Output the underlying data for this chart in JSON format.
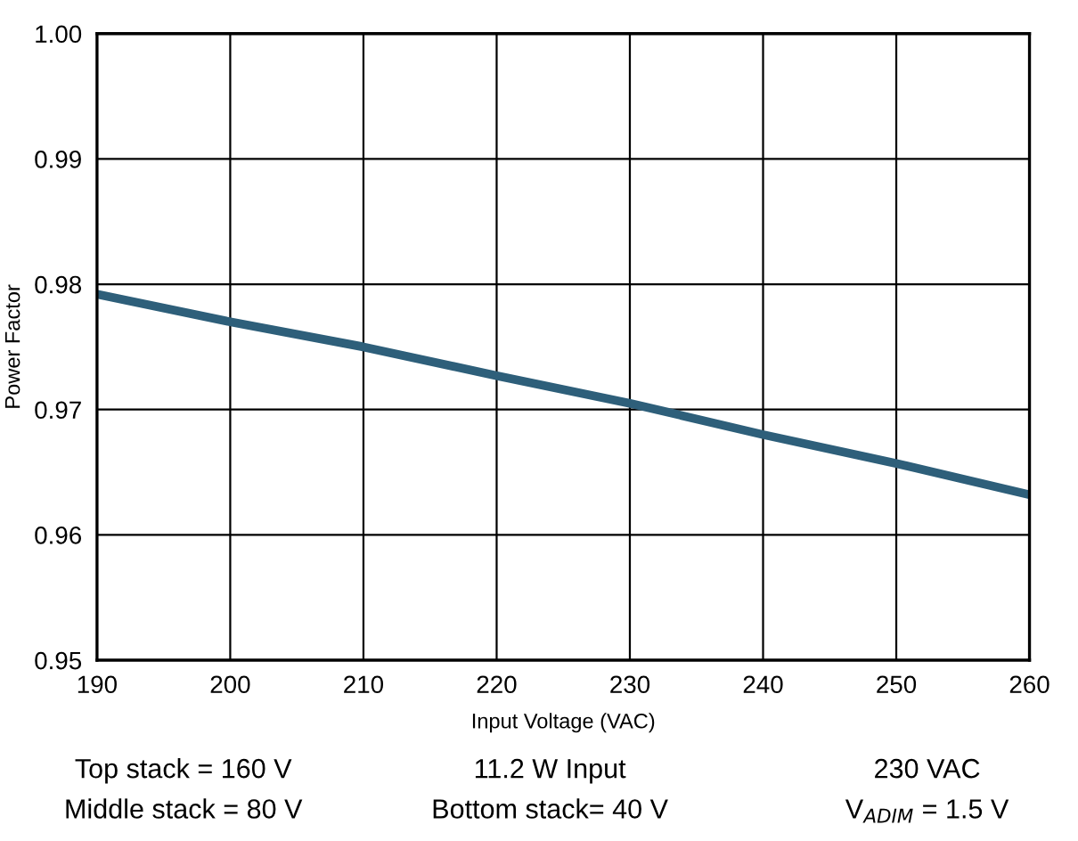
{
  "chart_data": {
    "type": "line",
    "xlabel": "Input Voltage (VAC)",
    "ylabel": "Power Factor",
    "x": [
      190,
      200,
      210,
      220,
      230,
      240,
      250,
      260
    ],
    "series": [
      {
        "color": "#2e5f7a",
        "values": [
          0.9792,
          0.977,
          0.975,
          0.9727,
          0.9705,
          0.968,
          0.9657,
          0.9632
        ]
      }
    ],
    "xlim": [
      190,
      260
    ],
    "xticks": [
      190,
      200,
      210,
      220,
      230,
      240,
      250,
      260
    ],
    "ylim": [
      0.95,
      1.0
    ],
    "yticks": [
      {
        "value": 0.95,
        "label": "0.95"
      },
      {
        "value": 0.96,
        "label": "0.96"
      },
      {
        "value": 0.97,
        "label": "0.97"
      },
      {
        "value": 0.98,
        "label": "0.98"
      },
      {
        "value": 0.99,
        "label": "0.99"
      },
      {
        "value": 1.0,
        "label": "1.00"
      }
    ],
    "grid": true,
    "marker": "none",
    "line_style": "solid",
    "annotations": [
      "Top stack = 160 V",
      "11.2 W Input",
      "230 VAC",
      "Middle stack = 80 V",
      "Bottom stack= 40 V",
      "V$_{ADIM}$ = 1.5 V"
    ]
  }
}
